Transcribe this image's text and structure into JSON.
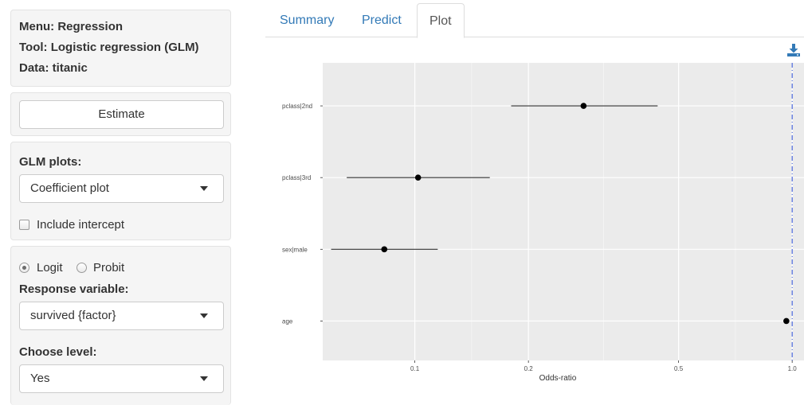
{
  "sidebar": {
    "menu": "Menu: Regression",
    "tool": "Tool: Logistic regression (GLM)",
    "data": "Data: titanic",
    "estimate_label": "Estimate",
    "glm_plots_label": "GLM plots:",
    "glm_plots_value": "Coefficient plot",
    "include_intercept_label": "Include intercept",
    "include_intercept_checked": false,
    "link_options": [
      {
        "label": "Logit",
        "checked": true
      },
      {
        "label": "Probit",
        "checked": false
      }
    ],
    "response_label": "Response variable:",
    "response_value": "survived {factor}",
    "level_label": "Choose level:",
    "level_value": "Yes"
  },
  "tabs": [
    {
      "label": "Summary",
      "active": false
    },
    {
      "label": "Predict",
      "active": false
    },
    {
      "label": "Plot",
      "active": true
    }
  ],
  "download_icon": "download-icon",
  "colors": {
    "panel_bg": "#ebebeb",
    "reference_line": "#3b5bdb",
    "tab_link": "#337ab7",
    "download": "#337ab7"
  },
  "chart_data": {
    "type": "scatter",
    "xlabel": "Odds-ratio",
    "x_scale": "log",
    "xlim": [
      0.057,
      1.08
    ],
    "x_ticks": [
      {
        "value": 0.1,
        "label": "0.1"
      },
      {
        "value": 0.2,
        "label": "0.2"
      },
      {
        "value": 0.5,
        "label": "0.5"
      },
      {
        "value": 1.0,
        "label": "1.0"
      }
    ],
    "categories": [
      "pclass|2nd",
      "pclass|3rd",
      "sex|male",
      "age"
    ],
    "estimates": [
      0.28,
      0.102,
      0.083,
      0.965
    ],
    "ci_low": [
      0.18,
      0.066,
      0.06,
      0.96
    ],
    "ci_high": [
      0.44,
      0.158,
      0.115,
      0.97
    ],
    "reference_line": 1.0,
    "grid": true
  }
}
